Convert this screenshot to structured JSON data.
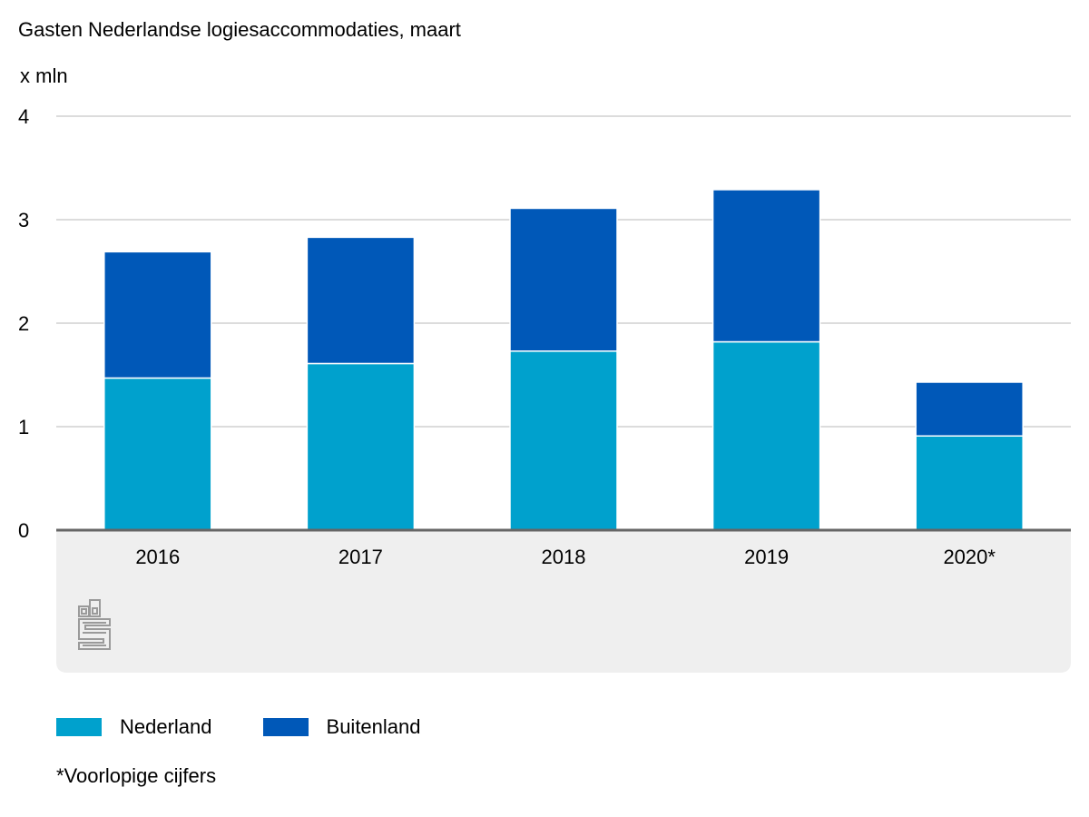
{
  "chart_data": {
    "type": "bar",
    "stacked": true,
    "title": "Gasten Nederlandse logiesaccommodaties, maart",
    "ylabel": "x mln",
    "xlabel": "",
    "ylim": [
      0,
      4
    ],
    "yticks": [
      "0",
      "1",
      "2",
      "3",
      "4"
    ],
    "grid": true,
    "legend_position": "bottom",
    "categories": [
      "2016",
      "2017",
      "2018",
      "2019",
      "2020*"
    ],
    "series": [
      {
        "name": "Nederland",
        "color": "#00a1cd",
        "values": [
          1.47,
          1.61,
          1.73,
          1.82,
          0.91
        ]
      },
      {
        "name": "Buitenland",
        "color": "#0058b8",
        "values": [
          1.22,
          1.22,
          1.38,
          1.47,
          0.52
        ]
      }
    ],
    "footnote": "*Voorlopige cijfers"
  },
  "logo": {
    "icon": "cbs-logo-icon"
  },
  "colors": {
    "grid": "#c8c8c8",
    "axis": "#666666",
    "footer_panel": "#efefef"
  }
}
